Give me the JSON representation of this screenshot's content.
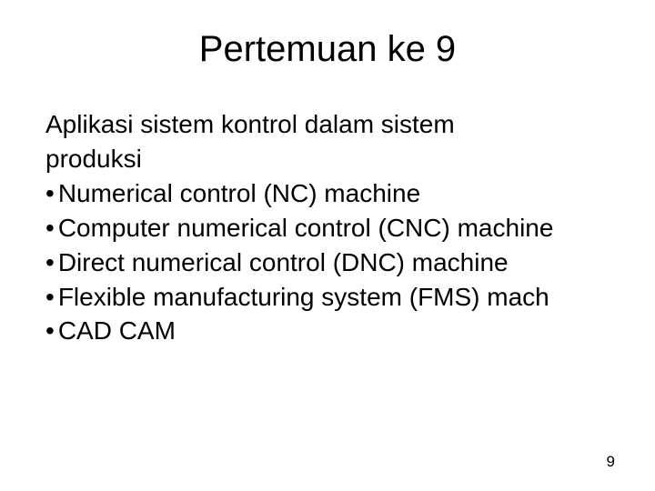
{
  "slide": {
    "title": "Pertemuan ke 9",
    "subtitle_line1": "Aplikasi sistem kontrol dalam sistem",
    "subtitle_line2": "produksi",
    "bullets": {
      "item0": "Numerical control (NC) machine",
      "item1": "Computer numerical control (CNC) machine",
      "item2": "Direct numerical control (DNC) machine",
      "item3": "Flexible manufacturing system (FMS) mach",
      "item4": "CAD CAM"
    },
    "page_number": "9"
  },
  "styling": {
    "background_color": "#ffffff",
    "text_color": "#000000",
    "title_fontsize": 40,
    "body_fontsize": 28,
    "page_number_fontsize": 17,
    "font_family": "Arial, Helvetica, sans-serif",
    "bullet_marker": "•"
  }
}
